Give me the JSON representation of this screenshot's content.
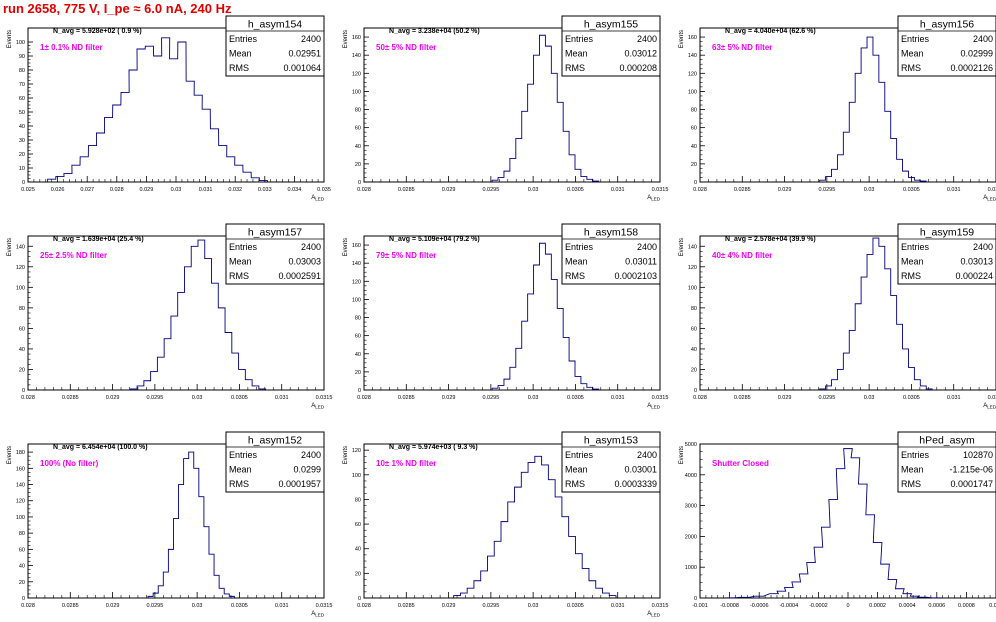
{
  "page_title": "run 2658,   775 V, I_pe ≈ 6.0 nA, 240 Hz",
  "chart_data": [
    {
      "type": "bar",
      "name": "h_asym154",
      "navg": "N_avg = 5.928e+02 ( 0.9 %)",
      "annotation": "1± 0.1% ND filter",
      "stats": {
        "entries": "2400",
        "mean": "0.02951",
        "rms": "0.001064"
      },
      "ylabel": "Events",
      "xlabel": "A_LED",
      "xlim": [
        0.025,
        0.035
      ],
      "ylim": [
        0,
        110
      ],
      "xticks": [
        "0.025",
        "0.026",
        "0.027",
        "0.028",
        "0.029",
        "0.03",
        "0.031",
        "0.032",
        "0.033",
        "0.034",
        "0.035"
      ],
      "xticks_val": [
        0.025,
        0.026,
        0.027,
        0.028,
        0.029,
        0.03,
        0.031,
        0.032,
        0.033,
        0.034,
        0.035
      ],
      "yticks": [
        0,
        10,
        20,
        30,
        40,
        50,
        60,
        70,
        80,
        90,
        100
      ],
      "peak": 103,
      "peak_x": 0.0296,
      "x": [
        0.0258,
        0.02608,
        0.02635,
        0.02662,
        0.0269,
        0.02718,
        0.02745,
        0.02772,
        0.028,
        0.02828,
        0.02855,
        0.02882,
        0.0291,
        0.02938,
        0.02965,
        0.02992,
        0.0302,
        0.03048,
        0.03075,
        0.03102,
        0.0313,
        0.03158,
        0.03185,
        0.03212,
        0.0324,
        0.03268,
        0.03295
      ],
      "values": [
        2,
        4,
        6,
        12,
        18,
        26,
        35,
        46,
        55,
        64,
        80,
        95,
        97,
        90,
        103,
        88,
        100,
        72,
        62,
        52,
        38,
        26,
        18,
        12,
        7,
        3,
        1
      ]
    },
    {
      "type": "bar",
      "name": "h_asym155",
      "navg": "N_avg = 3.238e+04 (50.2 %)",
      "annotation": "50± 5% ND filter",
      "stats": {
        "entries": "2400",
        "mean": "0.03012",
        "rms": "0.000208"
      },
      "ylabel": "Events",
      "xlabel": "A_LED",
      "xlim": [
        0.028,
        0.0315
      ],
      "ylim": [
        0,
        170
      ],
      "xticks": [
        "0.028",
        "0.0285",
        "0.029",
        "0.0295",
        "0.03",
        "0.0305",
        "0.031",
        "0.0315"
      ],
      "xticks_val": [
        0.028,
        0.0285,
        0.029,
        0.0295,
        0.03,
        0.0305,
        0.031,
        0.0315
      ],
      "yticks": [
        0,
        20,
        40,
        60,
        80,
        100,
        120,
        140,
        160
      ],
      "peak": 162,
      "peak_x": 0.0301,
      "x": [
        0.02955,
        0.02962,
        0.02969,
        0.02976,
        0.02983,
        0.0299,
        0.02997,
        0.03004,
        0.03011,
        0.03018,
        0.03025,
        0.03032,
        0.03039,
        0.03046,
        0.03053,
        0.0306,
        0.03067,
        0.03074
      ],
      "values": [
        2,
        5,
        12,
        26,
        48,
        78,
        108,
        140,
        162,
        150,
        120,
        88,
        56,
        30,
        14,
        6,
        3,
        1
      ]
    },
    {
      "type": "bar",
      "name": "h_asym156",
      "navg": "N_avg = 4.040e+04 (62.6 %)",
      "annotation": "63± 5% ND filter",
      "stats": {
        "entries": "2400",
        "mean": "0.02999",
        "rms": "0.0002126"
      },
      "ylabel": "Events",
      "xlabel": "A_LED",
      "xlim": [
        0.028,
        0.0315
      ],
      "ylim": [
        0,
        170
      ],
      "xticks": [
        "0.028",
        "0.0285",
        "0.029",
        "0.0295",
        "0.03",
        "0.0305",
        "0.031",
        "0.0315"
      ],
      "xticks_val": [
        0.028,
        0.0285,
        0.029,
        0.0295,
        0.03,
        0.0305,
        0.031,
        0.0315
      ],
      "yticks": [
        0,
        20,
        40,
        60,
        80,
        100,
        120,
        140,
        160
      ],
      "peak": 160,
      "peak_x": 0.03,
      "x": [
        0.02945,
        0.02952,
        0.02959,
        0.02966,
        0.02973,
        0.0298,
        0.02987,
        0.02994,
        0.03001,
        0.03008,
        0.03015,
        0.03022,
        0.03029,
        0.03036,
        0.03043,
        0.0305,
        0.03057,
        0.03064
      ],
      "values": [
        2,
        6,
        14,
        30,
        55,
        88,
        120,
        148,
        160,
        140,
        110,
        78,
        48,
        25,
        12,
        5,
        2,
        1
      ]
    },
    {
      "type": "bar",
      "name": "h_asym157",
      "navg": "N_avg = 1.639e+04 (25.4 %)",
      "annotation": "25± 2.5% ND filter",
      "stats": {
        "entries": "2400",
        "mean": "0.03003",
        "rms": "0.0002591"
      },
      "ylabel": "Events",
      "xlabel": "A_LED",
      "xlim": [
        0.028,
        0.0315
      ],
      "ylim": [
        0,
        150
      ],
      "xticks": [
        "0.028",
        "0.0285",
        "0.029",
        "0.0295",
        "0.03",
        "0.0305",
        "0.031",
        "0.0315"
      ],
      "xticks_val": [
        0.028,
        0.0285,
        0.029,
        0.0295,
        0.03,
        0.0305,
        0.031,
        0.0315
      ],
      "yticks": [
        0,
        20,
        40,
        60,
        80,
        100,
        120,
        140
      ],
      "peak": 146,
      "peak_x": 0.03,
      "x": [
        0.02925,
        0.02933,
        0.02941,
        0.02949,
        0.02957,
        0.02965,
        0.02973,
        0.02981,
        0.02989,
        0.02997,
        0.03005,
        0.03013,
        0.03021,
        0.03029,
        0.03037,
        0.03045,
        0.03053,
        0.03061,
        0.03069,
        0.03077
      ],
      "values": [
        1,
        4,
        9,
        18,
        32,
        50,
        72,
        95,
        120,
        140,
        146,
        128,
        104,
        80,
        56,
        36,
        20,
        10,
        4,
        1
      ]
    },
    {
      "type": "bar",
      "name": "h_asym158",
      "navg": "N_avg = 5.109e+04 (79.2 %)",
      "annotation": "79± 5% ND filter",
      "stats": {
        "entries": "2400",
        "mean": "0.03011",
        "rms": "0.0002103"
      },
      "ylabel": "Events",
      "xlabel": "A_LED",
      "xlim": [
        0.028,
        0.0315
      ],
      "ylim": [
        0,
        170
      ],
      "xticks": [
        "0.028",
        "0.0285",
        "0.029",
        "0.0295",
        "0.03",
        "0.0305",
        "0.031",
        "0.0315"
      ],
      "xticks_val": [
        0.028,
        0.0285,
        0.029,
        0.0295,
        0.03,
        0.0305,
        0.031,
        0.0315
      ],
      "yticks": [
        0,
        20,
        40,
        60,
        80,
        100,
        120,
        140,
        160
      ],
      "peak": 162,
      "peak_x": 0.0301,
      "x": [
        0.02955,
        0.02962,
        0.02969,
        0.02976,
        0.02983,
        0.0299,
        0.02997,
        0.03004,
        0.03011,
        0.03018,
        0.03025,
        0.03032,
        0.03039,
        0.03046,
        0.03053,
        0.0306,
        0.03067,
        0.03074
      ],
      "values": [
        2,
        5,
        12,
        25,
        46,
        76,
        106,
        138,
        162,
        150,
        122,
        90,
        58,
        32,
        15,
        7,
        3,
        1
      ]
    },
    {
      "type": "bar",
      "name": "h_asym159",
      "navg": "N_avg = 2.578e+04 (39.9 %)",
      "annotation": "40± 4% ND filter",
      "stats": {
        "entries": "2400",
        "mean": "0.03013",
        "rms": "0.000224"
      },
      "ylabel": "Events",
      "xlabel": "A_LED",
      "xlim": [
        0.028,
        0.0315
      ],
      "ylim": [
        0,
        150
      ],
      "xticks": [
        "0.028",
        "0.0285",
        "0.029",
        "0.0295",
        "0.03",
        "0.0305",
        "0.031",
        "0.0315"
      ],
      "xticks_val": [
        0.028,
        0.0285,
        0.029,
        0.0295,
        0.03,
        0.0305,
        0.031,
        0.0315
      ],
      "yticks": [
        0,
        20,
        40,
        60,
        80,
        100,
        120,
        140
      ],
      "peak": 148,
      "peak_x": 0.0301,
      "x": [
        0.02945,
        0.02952,
        0.02959,
        0.02966,
        0.02973,
        0.0298,
        0.02987,
        0.02994,
        0.03001,
        0.03008,
        0.03015,
        0.03022,
        0.03029,
        0.03036,
        0.03043,
        0.0305,
        0.03057,
        0.03064,
        0.03071
      ],
      "values": [
        1,
        4,
        10,
        20,
        36,
        58,
        84,
        110,
        132,
        148,
        140,
        118,
        92,
        64,
        40,
        22,
        10,
        4,
        1
      ]
    },
    {
      "type": "bar",
      "name": "h_asym152",
      "navg": "N_avg = 6.454e+04 (100.0 %)",
      "annotation": "100% (No filter)",
      "stats": {
        "entries": "2400",
        "mean": "0.0299",
        "rms": "0.0001957"
      },
      "ylabel": "Events",
      "xlabel": "A_LED",
      "xlim": [
        0.028,
        0.0315
      ],
      "ylim": [
        0,
        190
      ],
      "xticks": [
        "0.028",
        "0.0285",
        "0.029",
        "0.0295",
        "0.03",
        "0.0305",
        "0.031",
        "0.0315"
      ],
      "xticks_val": [
        0.028,
        0.0285,
        0.029,
        0.0295,
        0.03,
        0.0305,
        0.031,
        0.0315
      ],
      "yticks": [
        0,
        20,
        40,
        60,
        80,
        100,
        120,
        140,
        160,
        180
      ],
      "peak": 180,
      "peak_x": 0.0299,
      "x": [
        0.02945,
        0.02951,
        0.02957,
        0.02963,
        0.02969,
        0.02975,
        0.02981,
        0.02987,
        0.02993,
        0.02999,
        0.03005,
        0.03011,
        0.03017,
        0.03023,
        0.03029,
        0.03035,
        0.03041
      ],
      "values": [
        2,
        6,
        15,
        32,
        60,
        98,
        140,
        172,
        180,
        160,
        125,
        88,
        54,
        28,
        12,
        5,
        2
      ]
    },
    {
      "type": "bar",
      "name": "h_asym153",
      "navg": "N_avg = 5.974e+03 ( 9.3 %)",
      "annotation": "10± 1% ND filter",
      "stats": {
        "entries": "2400",
        "mean": "0.03001",
        "rms": "0.0003339"
      },
      "ylabel": "Events",
      "xlabel": "A_LED",
      "xlim": [
        0.028,
        0.0315
      ],
      "ylim": [
        0,
        125
      ],
      "xticks": [
        "0.028",
        "0.0285",
        "0.029",
        "0.0295",
        "0.03",
        "0.0305",
        "0.031",
        "0.0315"
      ],
      "xticks_val": [
        0.028,
        0.0285,
        0.029,
        0.0295,
        0.03,
        0.0305,
        0.031,
        0.0315
      ],
      "yticks": [
        0,
        20,
        40,
        60,
        80,
        100,
        120
      ],
      "peak": 115,
      "peak_x": 0.0301,
      "x": [
        0.0291,
        0.02918,
        0.02926,
        0.02934,
        0.02942,
        0.0295,
        0.02958,
        0.02966,
        0.02974,
        0.02982,
        0.0299,
        0.02998,
        0.03006,
        0.03014,
        0.03022,
        0.0303,
        0.03038,
        0.03046,
        0.03054,
        0.03062,
        0.0307,
        0.03078,
        0.03086,
        0.03094
      ],
      "values": [
        2,
        4,
        8,
        14,
        22,
        34,
        46,
        62,
        78,
        90,
        102,
        110,
        115,
        108,
        96,
        82,
        66,
        50,
        36,
        24,
        14,
        8,
        4,
        2
      ]
    },
    {
      "type": "bar",
      "name": "hPed_asym",
      "navg": "",
      "annotation": "Shutter Closed",
      "stats": {
        "entries": "102870",
        "mean": "-1.215e-06",
        "rms": "0.0001747"
      },
      "ylabel": "Events",
      "xlabel": "",
      "xlim": [
        -0.001,
        0.001
      ],
      "ylim": [
        0,
        5000
      ],
      "xticks": [
        "-0.001",
        "-0.0008",
        "-0.0006",
        "-0.0004",
        "-0.0002",
        "0",
        "0.0002",
        "0.0004",
        "0.0006",
        "0.0008",
        "0.001"
      ],
      "xticks_val": [
        -0.001,
        -0.0008,
        -0.0006,
        -0.0004,
        -0.0002,
        0,
        0.0002,
        0.0004,
        0.0006,
        0.0008,
        0.001
      ],
      "yticks": [
        0,
        1000,
        2000,
        3000,
        4000,
        5000
      ],
      "peak": 4850,
      "peak_x": 0,
      "x": [
        -0.0008,
        -0.0007,
        -0.0006,
        -0.0005,
        -0.00045,
        -0.0004,
        -0.00035,
        -0.0003,
        -0.00025,
        -0.0002,
        -0.00015,
        -0.0001,
        -5e-05,
        0,
        5e-05,
        0.0001,
        0.00015,
        0.0002,
        0.00025,
        0.0003,
        0.00035,
        0.0004,
        0.00045,
        0.0005,
        0.0006
      ],
      "values": [
        5,
        20,
        60,
        140,
        220,
        340,
        520,
        780,
        1150,
        1650,
        2300,
        3200,
        4200,
        4850,
        4550,
        3700,
        2700,
        1800,
        1100,
        600,
        300,
        140,
        60,
        25,
        6
      ]
    }
  ]
}
